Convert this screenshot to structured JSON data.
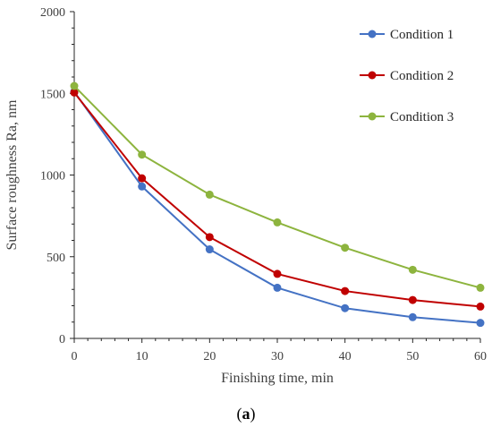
{
  "caption": {
    "open": "(",
    "letter": "a",
    "close": ")"
  },
  "chart_data": {
    "type": "line",
    "title": "",
    "xlabel": "Finishing time, min",
    "ylabel": "Surface roughness Ra, nm",
    "xlim": [
      0,
      60
    ],
    "ylim": [
      0,
      2000
    ],
    "xticks": [
      0,
      10,
      20,
      30,
      40,
      50,
      60
    ],
    "yticks": [
      0,
      500,
      1000,
      1500,
      2000
    ],
    "grid": false,
    "legend_position": "top-right",
    "x": [
      0,
      10,
      20,
      30,
      40,
      50,
      60
    ],
    "series": [
      {
        "name": "Condition 1",
        "color": "#4472C4",
        "values": [
          1510,
          930,
          545,
          310,
          185,
          130,
          95
        ]
      },
      {
        "name": "Condition 2",
        "color": "#C00000",
        "values": [
          1505,
          980,
          620,
          395,
          290,
          235,
          195
        ]
      },
      {
        "name": "Condition 3",
        "color": "#8DB43E",
        "values": [
          1545,
          1125,
          880,
          710,
          555,
          420,
          310
        ]
      }
    ]
  }
}
